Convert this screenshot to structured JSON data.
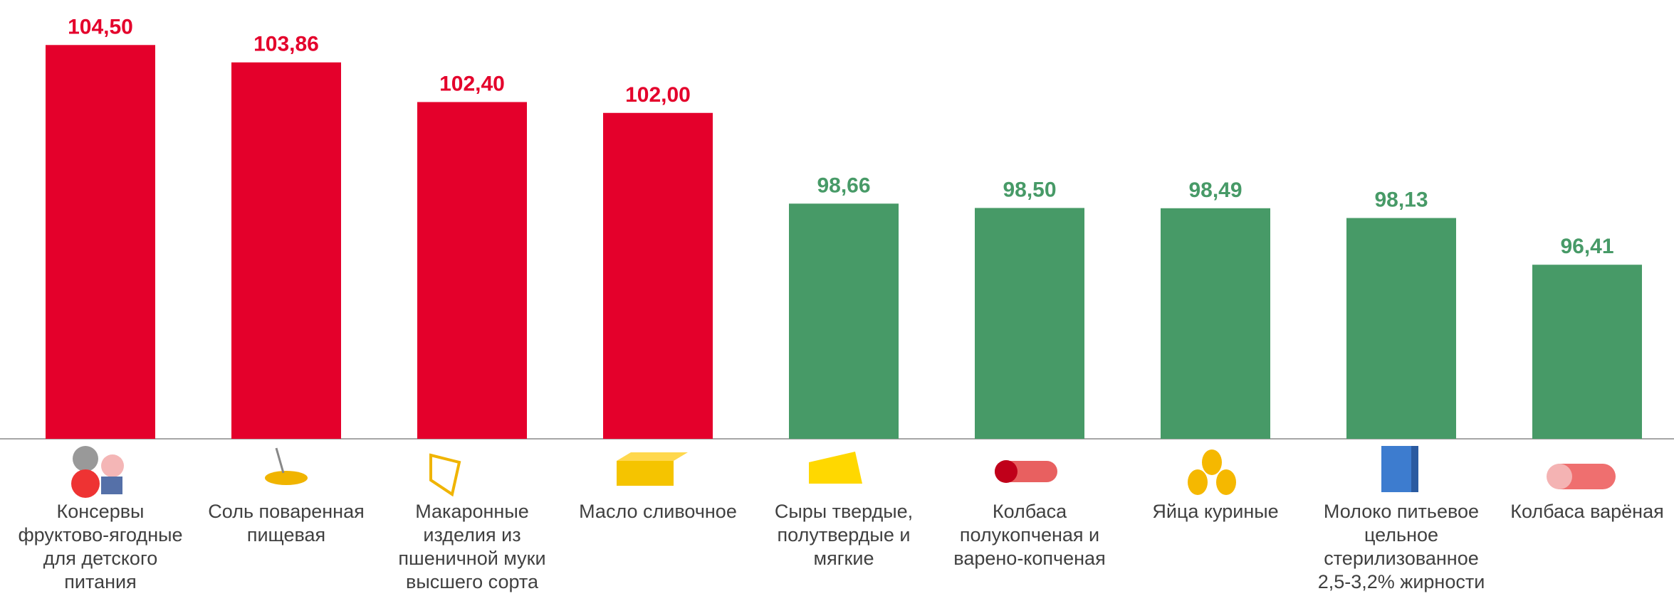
{
  "chart_data": {
    "type": "bar",
    "categories": [
      "Консервы фруктово-ягодные для детского питания",
      "Соль поваренная пищевая",
      "Макаронные изделия из пшеничной муки высшего сорта",
      "Масло сливочное",
      "Сыры твердые, полутвердые и мягкие",
      "Колбаса полукопченая и варено-копченая",
      "Яйца куриные",
      "Молоко питьевое цельное стерилизованное 2,5-3,2% жирности",
      "Колбаса варёная"
    ],
    "values": [
      104.5,
      103.86,
      102.4,
      102.0,
      98.66,
      98.5,
      98.49,
      98.13,
      96.41
    ],
    "value_labels": [
      "104,50",
      "103,86",
      "102,40",
      "102,00",
      "98,66",
      "98,50",
      "98,49",
      "98,13",
      "96,41"
    ],
    "colors": [
      "#e4002b",
      "#e4002b",
      "#e4002b",
      "#e4002b",
      "#479a67",
      "#479a67",
      "#479a67",
      "#479a67",
      "#479a67"
    ],
    "ylim": [
      90,
      106
    ]
  }
}
